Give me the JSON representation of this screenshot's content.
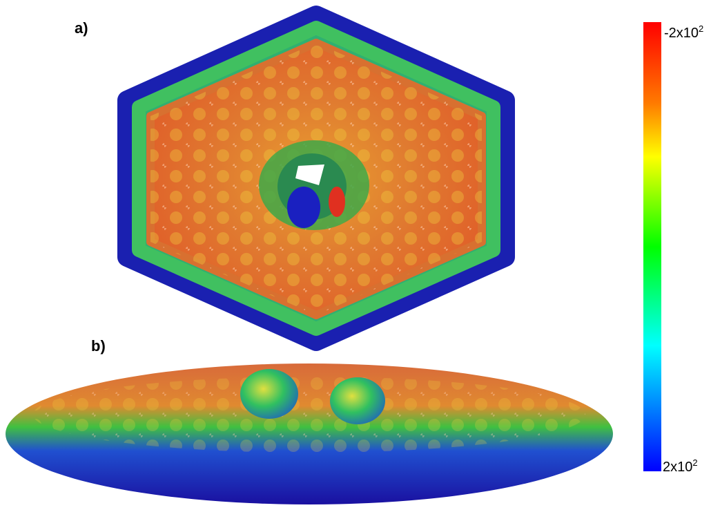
{
  "panels": [
    {
      "label": "a)"
    },
    {
      "label": "b)"
    }
  ],
  "colorbar": {
    "top": {
      "base": "-2x10",
      "exponent": "2"
    },
    "bottom": {
      "base": "2x10",
      "exponent": "2"
    }
  }
}
